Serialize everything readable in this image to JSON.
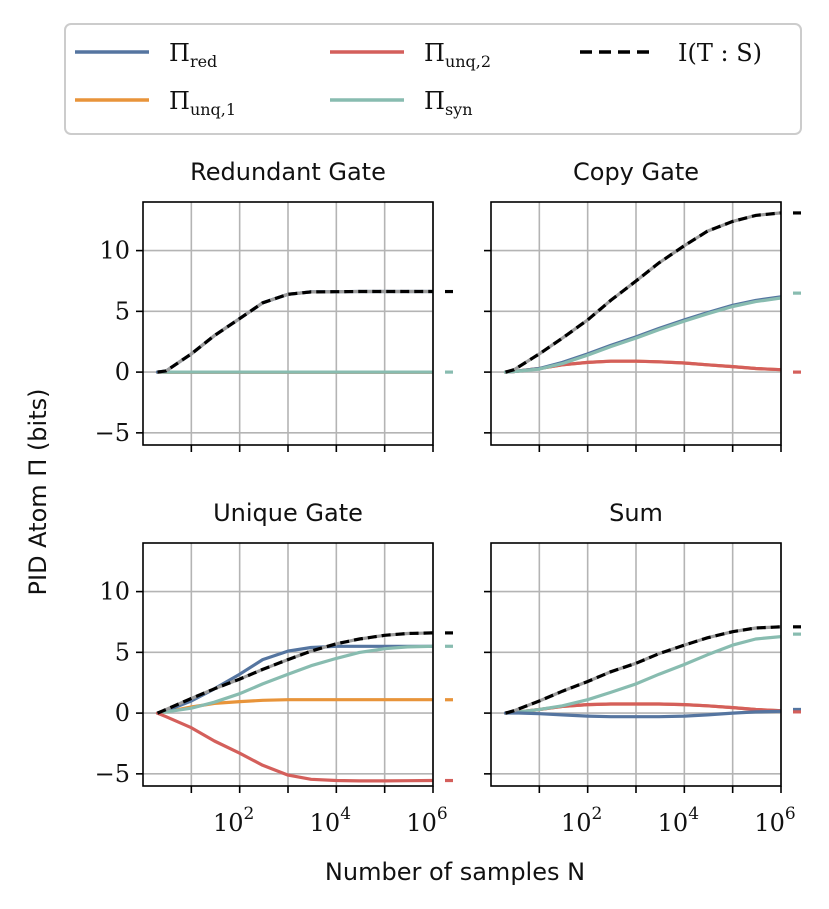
{
  "chart_data": {
    "type": "line",
    "xlabel": "Number of samples N",
    "ylabel": "PID Atom Π (bits)",
    "xscale": "log",
    "xlim": [
      1,
      1000000
    ],
    "ylim": [
      -6,
      14
    ],
    "xticks": [
      100,
      10000,
      1000000
    ],
    "xtick_labels": [
      "10^2",
      "10^4",
      "10^6"
    ],
    "yticks": [
      -5,
      0,
      5,
      10
    ],
    "ytick_labels": [
      "−5",
      "0",
      "5",
      "10"
    ],
    "legend_position": "top",
    "legend": [
      {
        "key": "red",
        "label": "Π",
        "sub": "red",
        "color": "#5575a0",
        "style": "solid"
      },
      {
        "key": "unq1",
        "label": "Π",
        "sub": "unq,1",
        "color": "#e8943a",
        "style": "solid"
      },
      {
        "key": "unq2",
        "label": "Π",
        "sub": "unq,2",
        "color": "#d45f5b",
        "style": "solid"
      },
      {
        "key": "syn",
        "label": "Π",
        "sub": "syn",
        "color": "#88bcb0",
        "style": "solid"
      },
      {
        "key": "mi",
        "label": "I(T : S)",
        "sub": "",
        "color": "#000000",
        "style": "dashed"
      }
    ],
    "x": [
      2,
      3,
      10,
      30,
      100,
      300,
      1000,
      3000,
      10000,
      30000,
      100000,
      300000,
      1000000
    ],
    "panels": [
      {
        "title": "Redundant Gate",
        "series": [
          {
            "key": "unq1",
            "values": [
              0,
              0,
              0,
              0,
              0,
              0,
              0,
              0,
              0,
              0,
              0,
              0,
              0
            ]
          },
          {
            "key": "unq2",
            "values": [
              0,
              0,
              0,
              0,
              0,
              0,
              0,
              0,
              0,
              0,
              0,
              0,
              0
            ]
          },
          {
            "key": "syn",
            "values": [
              0,
              0,
              0,
              0,
              0,
              0,
              0,
              0,
              0,
              0,
              0,
              0,
              0
            ]
          },
          {
            "key": "red",
            "values": [
              0,
              0.1,
              1.5,
              3.0,
              4.4,
              5.7,
              6.4,
              6.6,
              6.62,
              6.63,
              6.63,
              6.63,
              6.63
            ]
          }
        ],
        "mi": [
          0,
          0.1,
          1.5,
          3.0,
          4.4,
          5.7,
          6.4,
          6.6,
          6.62,
          6.63,
          6.63,
          6.63,
          6.63
        ],
        "limits": [
          {
            "key": "mi",
            "value": 6.63
          },
          {
            "key": "syn",
            "value": 0
          }
        ]
      },
      {
        "title": "Copy Gate",
        "series": [
          {
            "key": "unq1",
            "values": [
              0,
              0.05,
              0.3,
              0.6,
              0.8,
              0.9,
              0.9,
              0.85,
              0.75,
              0.6,
              0.45,
              0.3,
              0.2
            ]
          },
          {
            "key": "unq2",
            "values": [
              0,
              0.05,
              0.3,
              0.6,
              0.8,
              0.9,
              0.9,
              0.85,
              0.75,
              0.6,
              0.45,
              0.3,
              0.2
            ]
          },
          {
            "key": "red",
            "values": [
              0,
              0.05,
              0.3,
              0.8,
              1.5,
              2.2,
              2.9,
              3.6,
              4.3,
              4.9,
              5.5,
              5.9,
              6.2
            ]
          },
          {
            "key": "syn",
            "values": [
              0,
              0.05,
              0.25,
              0.7,
              1.4,
              2.1,
              2.8,
              3.5,
              4.2,
              4.8,
              5.4,
              5.8,
              6.1
            ]
          }
        ],
        "mi": [
          0,
          0.2,
          1.5,
          2.8,
          4.3,
          5.9,
          7.5,
          9.0,
          10.4,
          11.6,
          12.4,
          12.9,
          13.1
        ],
        "limits": [
          {
            "key": "mi",
            "value": 13.1
          },
          {
            "key": "syn",
            "value": 6.5
          },
          {
            "key": "unq2",
            "value": 0
          }
        ]
      },
      {
        "title": "Unique Gate",
        "series": [
          {
            "key": "unq1",
            "values": [
              0,
              0.1,
              0.5,
              0.8,
              0.95,
              1.05,
              1.1,
              1.1,
              1.1,
              1.1,
              1.1,
              1.1,
              1.1
            ]
          },
          {
            "key": "red",
            "values": [
              0,
              0.2,
              1.0,
              2.0,
              3.2,
              4.4,
              5.1,
              5.4,
              5.5,
              5.5,
              5.5,
              5.5,
              5.5
            ]
          },
          {
            "key": "syn",
            "values": [
              0,
              0.1,
              0.4,
              0.9,
              1.6,
              2.4,
              3.2,
              3.9,
              4.5,
              5.0,
              5.3,
              5.45,
              5.5
            ]
          },
          {
            "key": "unq2",
            "values": [
              0,
              -0.3,
              -1.2,
              -2.3,
              -3.3,
              -4.3,
              -5.1,
              -5.45,
              -5.55,
              -5.58,
              -5.58,
              -5.56,
              -5.55
            ]
          }
        ],
        "mi": [
          0,
          0.3,
          1.2,
          2.0,
          2.8,
          3.6,
          4.4,
          5.1,
          5.7,
          6.1,
          6.4,
          6.55,
          6.6
        ],
        "limits": [
          {
            "key": "mi",
            "value": 6.6
          },
          {
            "key": "syn",
            "value": 5.5
          },
          {
            "key": "unq1",
            "value": 1.1
          },
          {
            "key": "unq2",
            "value": -5.55
          }
        ]
      },
      {
        "title": "Sum",
        "series": [
          {
            "key": "unq1",
            "values": [
              0,
              0.05,
              0.3,
              0.55,
              0.7,
              0.75,
              0.75,
              0.75,
              0.7,
              0.6,
              0.45,
              0.3,
              0.2
            ]
          },
          {
            "key": "unq2",
            "values": [
              0,
              0.05,
              0.3,
              0.55,
              0.7,
              0.75,
              0.75,
              0.75,
              0.7,
              0.6,
              0.45,
              0.3,
              0.2
            ]
          },
          {
            "key": "syn",
            "values": [
              0,
              0.05,
              0.3,
              0.6,
              1.1,
              1.7,
              2.4,
              3.2,
              4.0,
              4.8,
              5.6,
              6.1,
              6.3
            ]
          },
          {
            "key": "red",
            "values": [
              0,
              0.02,
              -0.05,
              -0.15,
              -0.25,
              -0.3,
              -0.3,
              -0.3,
              -0.25,
              -0.15,
              0,
              0.1,
              0.15
            ]
          }
        ],
        "mi": [
          0,
          0.2,
          1.0,
          1.8,
          2.6,
          3.4,
          4.1,
          4.9,
          5.6,
          6.2,
          6.7,
          7.0,
          7.1
        ],
        "limits": [
          {
            "key": "mi",
            "value": 7.1
          },
          {
            "key": "syn",
            "value": 6.5
          },
          {
            "key": "red",
            "value": 0.3
          },
          {
            "key": "unq2",
            "value": 0.1
          }
        ]
      }
    ]
  }
}
